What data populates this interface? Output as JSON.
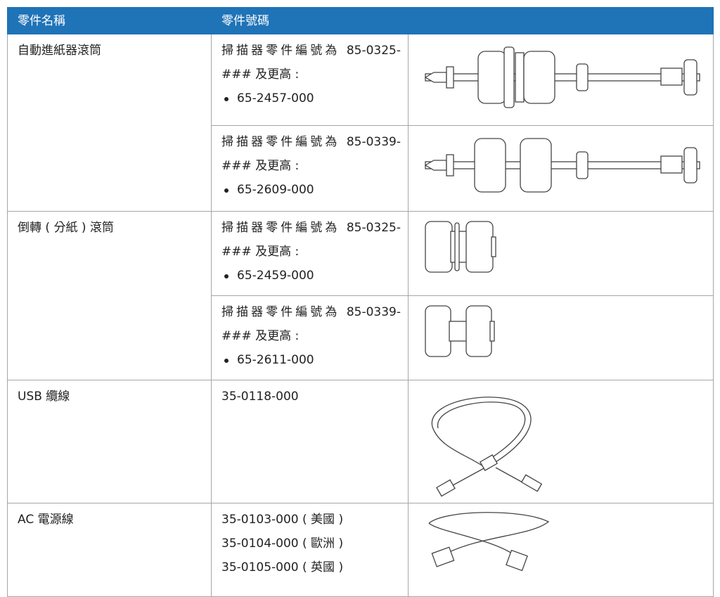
{
  "header": {
    "columns": [
      "零件名稱",
      "零件號碼"
    ]
  },
  "table": {
    "groups": [
      {
        "name": "自動進紙器滾筒",
        "parts": [
          {
            "lines": [
              "掃描器零件編號為 85-0325-### 及更高 :"
            ],
            "bullet": "65-2457-000"
          },
          {
            "lines": [
              "掃描器零件編號為 85-0339-### 及更高 :"
            ],
            "bullet": "65-2609-000"
          }
        ]
      },
      {
        "name": "倒轉 ( 分紙 ) 滾筒",
        "parts": [
          {
            "lines": [
              "掃描器零件編號為 85-0325-### 及更高 :"
            ],
            "bullet": "65-2459-000"
          },
          {
            "lines": [
              "掃描器零件編號為 85-0339-### 及更高 :"
            ],
            "bullet": "65-2611-000"
          }
        ]
      },
      {
        "name": "USB 纜線",
        "parts": [
          {
            "lines": [
              "35-0118-000"
            ]
          }
        ]
      },
      {
        "name": "AC 電源線",
        "parts": [
          {
            "lines": [
              "35-0103-000 ( 美國 )",
              "35-0104-000 ( 歐洲 )",
              "35-0105-000 ( 英國 )"
            ]
          }
        ]
      }
    ]
  }
}
